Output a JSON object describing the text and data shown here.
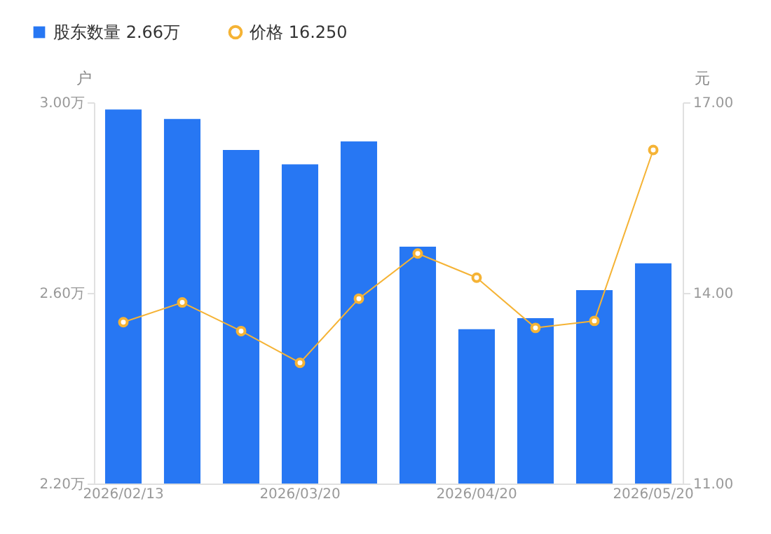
{
  "chart_data": {
    "type": "bar",
    "categories": [
      "2026/02/13",
      null,
      null,
      "2026/03/20",
      null,
      null,
      "2026/04/20",
      null,
      null,
      "2026/05/20"
    ],
    "series": [
      {
        "name": "股东数量  2.66万",
        "color": "#2777f3",
        "values": [
          2.985,
          2.965,
          2.9,
          2.87,
          2.918,
          2.697,
          2.524,
          2.547,
          2.606,
          2.662
        ]
      },
      {
        "name": "价格  16.250",
        "type": "line",
        "axis": "y2",
        "color": "#f5b335",
        "marker": "circle",
        "values": [
          13.54,
          13.85,
          13.4,
          12.9,
          13.91,
          14.62,
          14.24,
          13.45,
          13.56,
          16.25
        ]
      }
    ],
    "ylabel": "户",
    "y2label": "元",
    "ylim": [
      2.2,
      3.0
    ],
    "yticks": [
      {
        "value": 2.2,
        "label": "2.20万"
      },
      {
        "value": 2.6,
        "label": "2.60万"
      },
      {
        "value": 3.0,
        "label": "3.00万"
      }
    ],
    "y2lim": [
      11,
      17
    ],
    "y2ticks": [
      {
        "value": 11,
        "label": "11.00"
      },
      {
        "value": 14,
        "label": "14.00"
      },
      {
        "value": 17,
        "label": "17.00"
      }
    ],
    "grid": false,
    "legend": "top left"
  }
}
